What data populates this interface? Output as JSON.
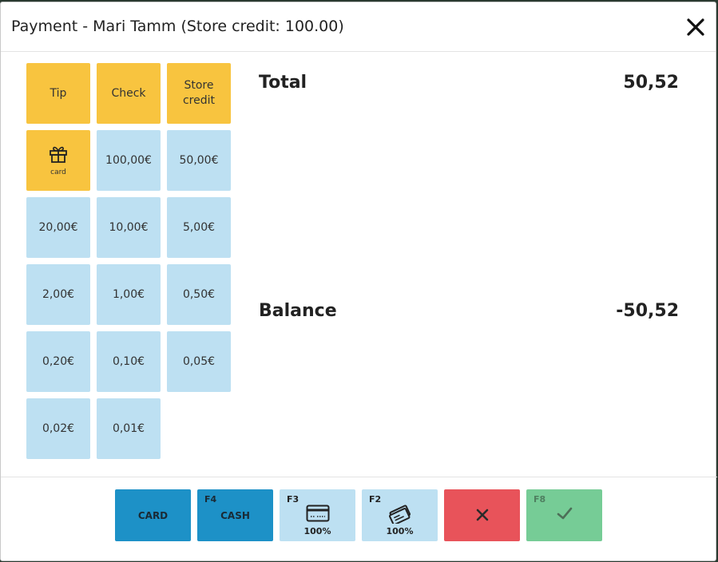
{
  "dialog": {
    "title": "Payment - Mari Tamm (Store credit: 100.00)"
  },
  "methods": {
    "tip": "Tip",
    "check": "Check",
    "store_credit": "Store credit",
    "gift_card_sub": "card"
  },
  "denominations": [
    "100,00€",
    "50,00€",
    "20,00€",
    "10,00€",
    "5,00€",
    "2,00€",
    "1,00€",
    "0,50€",
    "0,20€",
    "0,10€",
    "0,05€",
    "0,02€",
    "0,01€"
  ],
  "summary": {
    "total_label": "Total",
    "total_value": "50,52",
    "balance_label": "Balance",
    "balance_value": "-50,52"
  },
  "footer": {
    "card_label": "CARD",
    "cash_key": "F4",
    "cash_label": "CASH",
    "card_full_key": "F3",
    "card_full_pct": "100%",
    "voucher_key": "F2",
    "voucher_pct": "100%",
    "confirm_key": "F8"
  },
  "colors": {
    "method_yellow": "#f8c43f",
    "tile_blue": "#bde0f2",
    "primary_blue": "#1d91c7",
    "cancel_red": "#e8535a",
    "confirm_green": "#76cc96"
  }
}
